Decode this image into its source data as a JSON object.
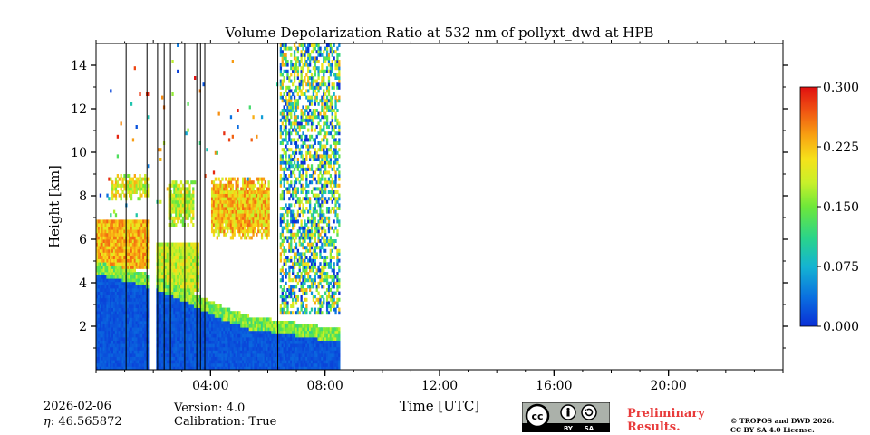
{
  "chart_data": {
    "type": "heatmap",
    "title": "Volume Depolarization Ratio at 532 nm of pollyxt_dwd at HPB",
    "xlabel": "Time [UTC]",
    "ylabel": "Height [km]",
    "xlim_hours": [
      0,
      24
    ],
    "ylim_km": [
      0,
      15
    ],
    "x_ticks": [
      {
        "hour": 4,
        "label": "04:00"
      },
      {
        "hour": 8,
        "label": "08:00"
      },
      {
        "hour": 12,
        "label": "12:00"
      },
      {
        "hour": 16,
        "label": "16:00"
      },
      {
        "hour": 20,
        "label": "20:00"
      }
    ],
    "y_ticks": [
      {
        "value": 2,
        "label": "2"
      },
      {
        "value": 4,
        "label": "4"
      },
      {
        "value": 6,
        "label": "6"
      },
      {
        "value": 8,
        "label": "8"
      },
      {
        "value": 10,
        "label": "10"
      },
      {
        "value": 12,
        "label": "12"
      },
      {
        "value": 14,
        "label": "14"
      }
    ],
    "colorbar": {
      "min": 0.0,
      "max": 0.3,
      "ticks": [
        {
          "value": 0.0,
          "label": "0.000"
        },
        {
          "value": 0.075,
          "label": "0.075"
        },
        {
          "value": 0.15,
          "label": "0.150"
        },
        {
          "value": 0.225,
          "label": "0.225"
        },
        {
          "value": 0.3,
          "label": "0.300"
        }
      ],
      "colormap": [
        "#0a2fd6",
        "#0a6fe0",
        "#14b4d2",
        "#2ad48a",
        "#6ee83a",
        "#c8f02a",
        "#f6e21a",
        "#f8a012",
        "#f05412",
        "#e01010"
      ]
    },
    "data_coverage_hours": [
      0,
      8.5
    ],
    "gap_columns_hours": [
      1.05,
      1.78,
      2.15,
      2.38,
      2.6,
      3.1,
      3.52,
      3.65,
      3.8,
      6.35
    ],
    "layers": [
      {
        "name": "boundary layer",
        "t_start": 0.0,
        "t_end": 8.5,
        "top_km": [
          4.9,
          4.6,
          4.2,
          3.6,
          2.9,
          2.4,
          2.2,
          2.0,
          1.8
        ],
        "mean_depol": 0.01
      },
      {
        "name": "aerosol layer",
        "t_start": 0.0,
        "t_end": 2.0,
        "bottom_km": 4.6,
        "top_km": 6.8,
        "mean_depol": 0.22
      },
      {
        "name": "mid cloud",
        "t_start": 2.1,
        "t_end": 3.6,
        "bottom_km": 3.5,
        "top_km": 5.8,
        "mean_depol": 0.17
      },
      {
        "name": "cirrus",
        "t_start": 0.5,
        "t_end": 2.0,
        "bottom_km": 7.8,
        "top_km": 9.0,
        "mean_depol": 0.18
      },
      {
        "name": "cirrus",
        "t_start": 2.5,
        "t_end": 3.4,
        "bottom_km": 6.6,
        "top_km": 8.6,
        "mean_depol": 0.17
      },
      {
        "name": "cirrus",
        "t_start": 4.0,
        "t_end": 6.0,
        "bottom_km": 6.0,
        "top_km": 8.8,
        "mean_depol": 0.21
      },
      {
        "name": "noisy daytime signal",
        "t_start": 6.4,
        "t_end": 8.5,
        "bottom_km": 2.5,
        "top_km": 15.0,
        "mean_depol": 0.06
      }
    ]
  },
  "footer": {
    "date": "2026-02-06",
    "eta_label": "η",
    "eta_value": "46.565872",
    "version": "Version: 4.0",
    "calibration": "Calibration: True",
    "preliminary": "Preliminary",
    "results": "Results.",
    "copyright_line1": "© TROPOS and DWD 2026.",
    "copyright_line2": "CC BY SA 4.0 License.",
    "cc_text": "cc",
    "by_text": "BY",
    "sa_text": "SA"
  }
}
